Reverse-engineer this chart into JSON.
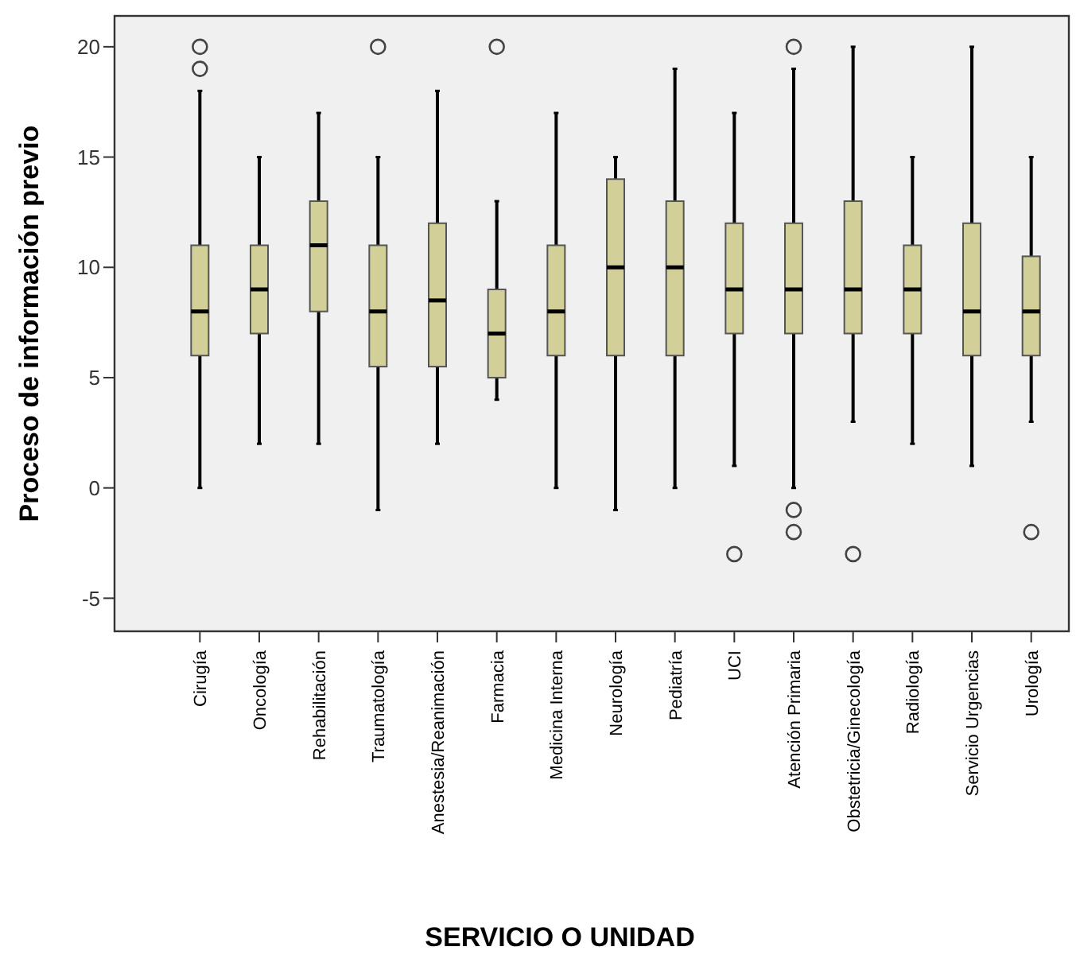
{
  "chart_data": {
    "type": "box",
    "xlabel": "SERVICIO O UNIDAD",
    "ylabel": "Proceso de información previo",
    "categories": [
      "Cirugía",
      "Oncología",
      "Rehabilitación",
      "Traumatología",
      "Anestesia/Reanimación",
      "Farmacia",
      "Medicina Interna",
      "Neurología",
      "Pediatría",
      "UCI",
      "Atención Primaria",
      "Obstetricia/Ginecología",
      "Radiología",
      "Servicio Urgencias",
      "Urología"
    ],
    "color": "#d3cf98",
    "boxes": [
      {
        "low": 0,
        "q1": 6,
        "median": 8,
        "q3": 11,
        "high": 18,
        "outliers": [
          20,
          19
        ]
      },
      {
        "low": 2,
        "q1": 7,
        "median": 9,
        "q3": 11,
        "high": 15
      },
      {
        "low": 2,
        "q1": 8,
        "median": 11,
        "q3": 13,
        "high": 17
      },
      {
        "low": -1,
        "q1": 5.5,
        "median": 8,
        "q3": 11,
        "high": 15,
        "outliers": [
          20
        ]
      },
      {
        "low": 2,
        "q1": 5.5,
        "median": 8.5,
        "q3": 12,
        "high": 18
      },
      {
        "low": 4,
        "q1": 5,
        "median": 7,
        "q3": 9,
        "high": 13,
        "outliers": [
          20
        ]
      },
      {
        "low": 0,
        "q1": 6,
        "median": 8,
        "q3": 11,
        "high": 17
      },
      {
        "low": -1,
        "q1": 6,
        "median": 10,
        "q3": 14,
        "high": 15
      },
      {
        "low": 0,
        "q1": 6,
        "median": 10,
        "q3": 13,
        "high": 19
      },
      {
        "low": 1,
        "q1": 7,
        "median": 9,
        "q3": 12,
        "high": 17,
        "outliers": [
          -3
        ]
      },
      {
        "low": 0,
        "q1": 7,
        "median": 9,
        "q3": 12,
        "high": 19,
        "outliers": [
          20,
          -1,
          -2
        ]
      },
      {
        "low": 3,
        "q1": 7,
        "median": 9,
        "q3": 13,
        "high": 20,
        "outliers": [
          -3
        ]
      },
      {
        "low": 2,
        "q1": 7,
        "median": 9,
        "q3": 11,
        "high": 15
      },
      {
        "low": 1,
        "q1": 6,
        "median": 8,
        "q3": 12,
        "high": 20
      },
      {
        "low": 3,
        "q1": 6,
        "median": 8,
        "q3": 10.5,
        "high": 15,
        "outliers": [
          -2
        ]
      }
    ],
    "ylim": [
      -6.5,
      21.4
    ],
    "yticks": [
      -5,
      0,
      5,
      10,
      15,
      20
    ],
    "grid": false
  }
}
